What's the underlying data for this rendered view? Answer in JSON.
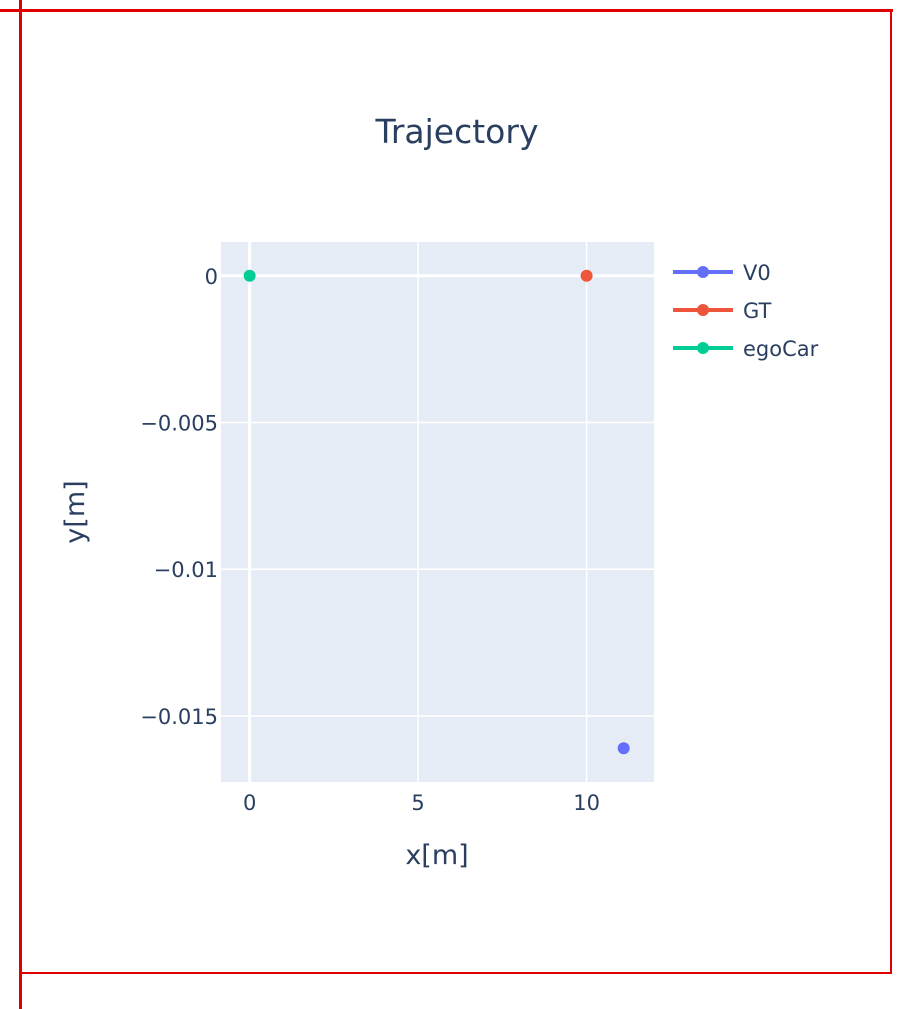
{
  "chart_data": {
    "type": "scatter",
    "title": "Trajectory",
    "xlabel": "x[m]",
    "ylabel": "y[m]",
    "xlim": [
      -0.85,
      12.0
    ],
    "ylim": [
      -0.01725,
      0.00115
    ],
    "xticks": [
      0,
      5,
      10
    ],
    "xtick_labels": [
      "0",
      "5",
      "10"
    ],
    "yticks": [
      0,
      -0.005,
      -0.01,
      -0.015
    ],
    "ytick_labels": [
      "0",
      "−0.005",
      "−0.01",
      "−0.015"
    ],
    "grid": true,
    "legend_position": "top-right",
    "series": [
      {
        "name": "V0",
        "color": "#636efa",
        "x": [
          11.1
        ],
        "y": [
          -0.0161
        ]
      },
      {
        "name": "GT",
        "color": "#ef553b",
        "x": [
          10.0
        ],
        "y": [
          0.0
        ]
      },
      {
        "name": "egoCar",
        "color": "#00cc96",
        "x": [
          0.0
        ],
        "y": [
          0.0
        ]
      }
    ]
  }
}
